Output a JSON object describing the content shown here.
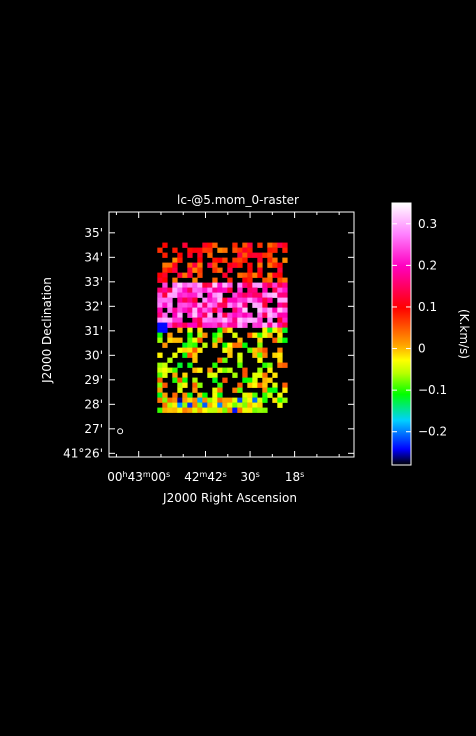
{
  "chart_data": {
    "type": "heatmap",
    "title": "lc-@5.mom_0-raster",
    "xlabel": "J2000 Right Ascension",
    "ylabel": "J2000 Declination",
    "x_ticks": [
      {
        "value_sec": 60,
        "label": "00h43m00s"
      },
      {
        "value_sec": 42,
        "label": "42m42s"
      },
      {
        "value_sec": 30,
        "label": "30s"
      },
      {
        "value_sec": 18,
        "label": "18s"
      }
    ],
    "y_ticks": [
      {
        "value_arcmin": 26,
        "label": "41°26'"
      },
      {
        "value_arcmin": 27,
        "label": "27'"
      },
      {
        "value_arcmin": 28,
        "label": "28'"
      },
      {
        "value_arcmin": 29,
        "label": "29'"
      },
      {
        "value_arcmin": 30,
        "label": "30'"
      },
      {
        "value_arcmin": 31,
        "label": "31'"
      },
      {
        "value_arcmin": 32,
        "label": "32'"
      },
      {
        "value_arcmin": 33,
        "label": "33'"
      },
      {
        "value_arcmin": 34,
        "label": "34'"
      },
      {
        "value_arcmin": 35,
        "label": "35'"
      }
    ],
    "xlim_sec": [
      68,
      2
    ],
    "ylim_arcmin": [
      25.85,
      35.85
    ],
    "colorbar": {
      "label": "(K.km/s)",
      "range": [
        -0.28,
        0.35
      ],
      "ticks": [
        {
          "value": 0.3,
          "label": "0.3"
        },
        {
          "value": 0.2,
          "label": "0.2"
        },
        {
          "value": 0.1,
          "label": "0.1"
        },
        {
          "value": 0,
          "label": "0"
        },
        {
          "value": -0.1,
          "label": "−0.1"
        },
        {
          "value": -0.2,
          "label": "−0.2"
        }
      ]
    },
    "data_region": {
      "ra_sec": [
        55,
        20
      ],
      "dec_arcmin": [
        27.8,
        34.6
      ]
    },
    "features": [
      {
        "name": "high-emission-band",
        "ra_sec": [
          53,
          21
        ],
        "dec_arcmin": [
          31.2,
          33.0
        ],
        "peak": 0.32
      },
      {
        "name": "low-emission-strip",
        "ra_sec": [
          52,
          28
        ],
        "dec_arcmin": [
          27.8,
          28.2
        ],
        "peak": -0.26
      },
      {
        "name": "low-spot",
        "ra_sec": 53.5,
        "dec_arcmin": 31.1,
        "peak": -0.24
      }
    ],
    "beam": {
      "ra_sec": 65,
      "dec_arcmin": 26.9
    }
  }
}
